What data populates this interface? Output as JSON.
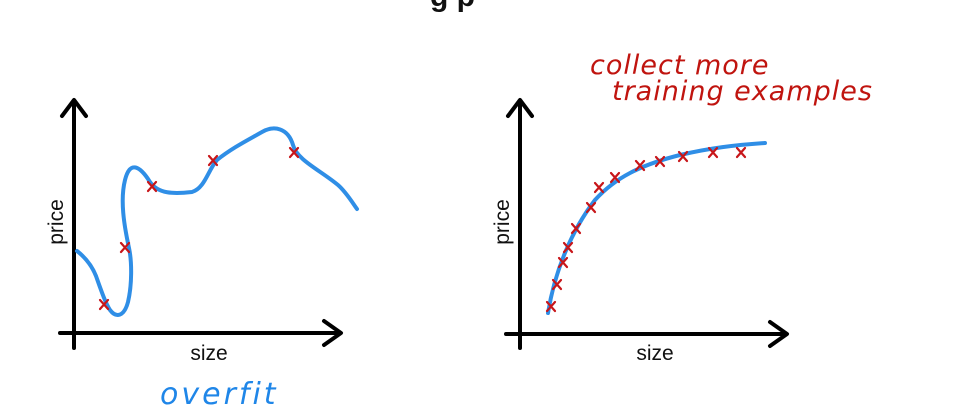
{
  "title": "g  p",
  "subtitle": "",
  "colors": {
    "curve": "#2f8ee6",
    "marker": "#c8161a",
    "axis": "#000000",
    "note": "#c0140f",
    "overfit": "#1f86e8"
  },
  "chart_data": [
    {
      "type": "line+scatter",
      "xlabel": "size",
      "ylabel": "price",
      "annotation": "overfit",
      "description_points_count": 5
    },
    {
      "type": "line+scatter",
      "xlabel": "size",
      "ylabel": "price",
      "annotation_line1": "collect more",
      "annotation_line2": "training examples",
      "description_points_count": 15
    }
  ]
}
